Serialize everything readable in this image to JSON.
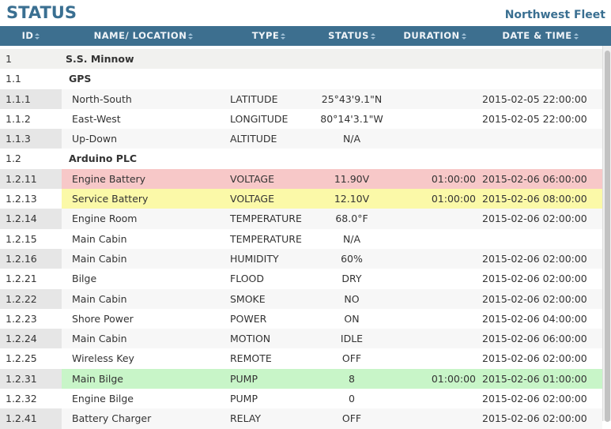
{
  "header": {
    "title": "STATUS",
    "fleet": "Northwest Fleet"
  },
  "table": {
    "columns": [
      "ID",
      "NAME/ LOCATION",
      "TYPE",
      "STATUS",
      "DURATION",
      "DATE & TIME"
    ],
    "rows": [
      {
        "id": "1",
        "name": "S.S. Minnow",
        "group": true
      },
      {
        "id": "1.1",
        "name": "GPS",
        "group": true
      },
      {
        "id": "1.1.1",
        "name": "North-South",
        "type": "LATITUDE",
        "status": "25°43'9.1\"N",
        "datetime": "2015-02-05 22:00:00"
      },
      {
        "id": "1.1.2",
        "name": "East-West",
        "type": "LONGITUDE",
        "status": "80°14'3.1\"W",
        "datetime": "2015-02-05 22:00:00"
      },
      {
        "id": "1.1.3",
        "name": "Up-Down",
        "type": "ALTITUDE",
        "status": "N/A"
      },
      {
        "id": "1.2",
        "name": "Arduino PLC",
        "group": true
      },
      {
        "id": "1.2.11",
        "name": "Engine Battery",
        "type": "VOLTAGE",
        "status": "11.90V",
        "duration": "01:00:00",
        "datetime": "2015-02-06 06:00:00",
        "highlight": "#f7c8c8"
      },
      {
        "id": "1.2.13",
        "name": "Service Battery",
        "type": "VOLTAGE",
        "status": "12.10V",
        "duration": "01:00:00",
        "datetime": "2015-02-06 08:00:00",
        "highlight": "#fbf9a8"
      },
      {
        "id": "1.2.14",
        "name": "Engine Room",
        "type": "TEMPERATURE",
        "status": "68.0°F",
        "datetime": "2015-02-06 02:00:00"
      },
      {
        "id": "1.2.15",
        "name": "Main Cabin",
        "type": "TEMPERATURE",
        "status": "N/A"
      },
      {
        "id": "1.2.16",
        "name": "Main Cabin",
        "type": "HUMIDITY",
        "status": "60%",
        "datetime": "2015-02-06 02:00:00"
      },
      {
        "id": "1.2.21",
        "name": "Bilge",
        "type": "FLOOD",
        "status": "DRY",
        "datetime": "2015-02-06 02:00:00"
      },
      {
        "id": "1.2.22",
        "name": "Main Cabin",
        "type": "SMOKE",
        "status": "NO",
        "datetime": "2015-02-06 02:00:00"
      },
      {
        "id": "1.2.23",
        "name": "Shore Power",
        "type": "POWER",
        "status": "ON",
        "datetime": "2015-02-06 04:00:00"
      },
      {
        "id": "1.2.24",
        "name": "Main Cabin",
        "type": "MOTION",
        "status": "IDLE",
        "datetime": "2015-02-06 06:00:00"
      },
      {
        "id": "1.2.25",
        "name": "Wireless Key",
        "type": "REMOTE",
        "status": "OFF",
        "datetime": "2015-02-06 02:00:00"
      },
      {
        "id": "1.2.31",
        "name": "Main Bilge",
        "type": "PUMP",
        "status": "8",
        "duration": "01:00:00",
        "datetime": "2015-02-06 01:00:00",
        "highlight": "#c8f5c8"
      },
      {
        "id": "1.2.32",
        "name": "Engine Bilge",
        "type": "PUMP",
        "status": "0",
        "datetime": "2015-02-06 02:00:00"
      },
      {
        "id": "1.2.41",
        "name": "Battery Charger",
        "type": "RELAY",
        "status": "OFF",
        "datetime": "2015-02-06 02:00:00"
      }
    ]
  }
}
